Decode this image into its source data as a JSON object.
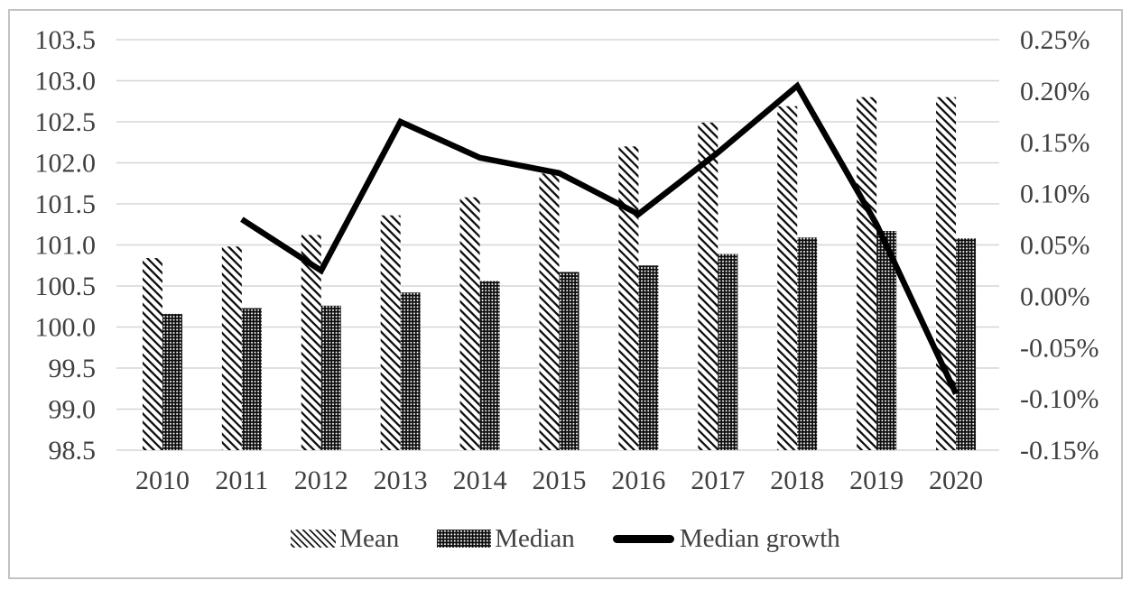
{
  "chart_data": {
    "type": "combo-bar-line",
    "title": "",
    "categories": [
      "2010",
      "2011",
      "2012",
      "2013",
      "2014",
      "2015",
      "2016",
      "2017",
      "2018",
      "2019",
      "2020"
    ],
    "series": [
      {
        "name": "Mean",
        "type": "bar",
        "axis": "left",
        "pattern": "diagonal-hatch",
        "values": [
          100.84,
          100.98,
          101.12,
          101.36,
          101.58,
          101.87,
          102.2,
          102.49,
          102.69,
          102.8,
          102.8
        ]
      },
      {
        "name": "Median",
        "type": "bar",
        "axis": "left",
        "pattern": "dot-grid",
        "values": [
          100.16,
          100.23,
          100.26,
          100.42,
          100.56,
          100.67,
          100.75,
          100.89,
          101.09,
          101.17,
          101.08
        ]
      },
      {
        "name": "Median growth",
        "type": "line",
        "axis": "right",
        "color": "#000000",
        "unit": "%",
        "values": [
          null,
          0.075,
          0.025,
          0.17,
          0.135,
          0.12,
          0.08,
          0.14,
          0.205,
          0.07,
          -0.095
        ]
      }
    ],
    "left_axis": {
      "min": 98.5,
      "max": 103.5,
      "step": 0.5,
      "tick_labels": [
        "103.5",
        "103.0",
        "102.5",
        "102.0",
        "101.5",
        "101.0",
        "100.5",
        "100.0",
        "99.5",
        "99.0",
        "98.5"
      ]
    },
    "right_axis": {
      "min": -0.15,
      "max": 0.25,
      "step": 0.05,
      "tick_labels": [
        "0.25%",
        "0.20%",
        "0.15%",
        "0.10%",
        "0.05%",
        "0.00%",
        "-0.05%",
        "-0.10%",
        "-0.15%"
      ]
    },
    "grid": true,
    "legend_position": "bottom"
  },
  "styles": {
    "text_color": "#404040",
    "gridline_color": "#d6d6d6",
    "line_color": "#000000",
    "border_color": "#c2c2c2",
    "bar_pattern_color": "#0d0d0d"
  }
}
